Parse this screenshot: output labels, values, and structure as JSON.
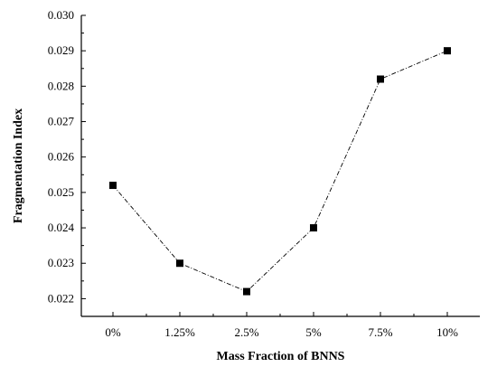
{
  "chart_data": {
    "type": "line",
    "title": "",
    "xlabel": "Mass Fraction of BNNS",
    "ylabel": "Fragmentation Index",
    "categories": [
      "0%",
      "1.25%",
      "2.5%",
      "5%",
      "7.5%",
      "10%"
    ],
    "ylim": [
      0.0215,
      0.03
    ],
    "y_ticks": [
      "0.022",
      "0.023",
      "0.024",
      "0.025",
      "0.026",
      "0.027",
      "0.028",
      "0.029",
      "0.030"
    ],
    "series": [
      {
        "values": [
          0.0252,
          0.023,
          0.0222,
          0.024,
          0.0282,
          0.029
        ]
      }
    ],
    "marker": "square",
    "line_style": "dash-dot",
    "grid": false,
    "legend": "none"
  }
}
